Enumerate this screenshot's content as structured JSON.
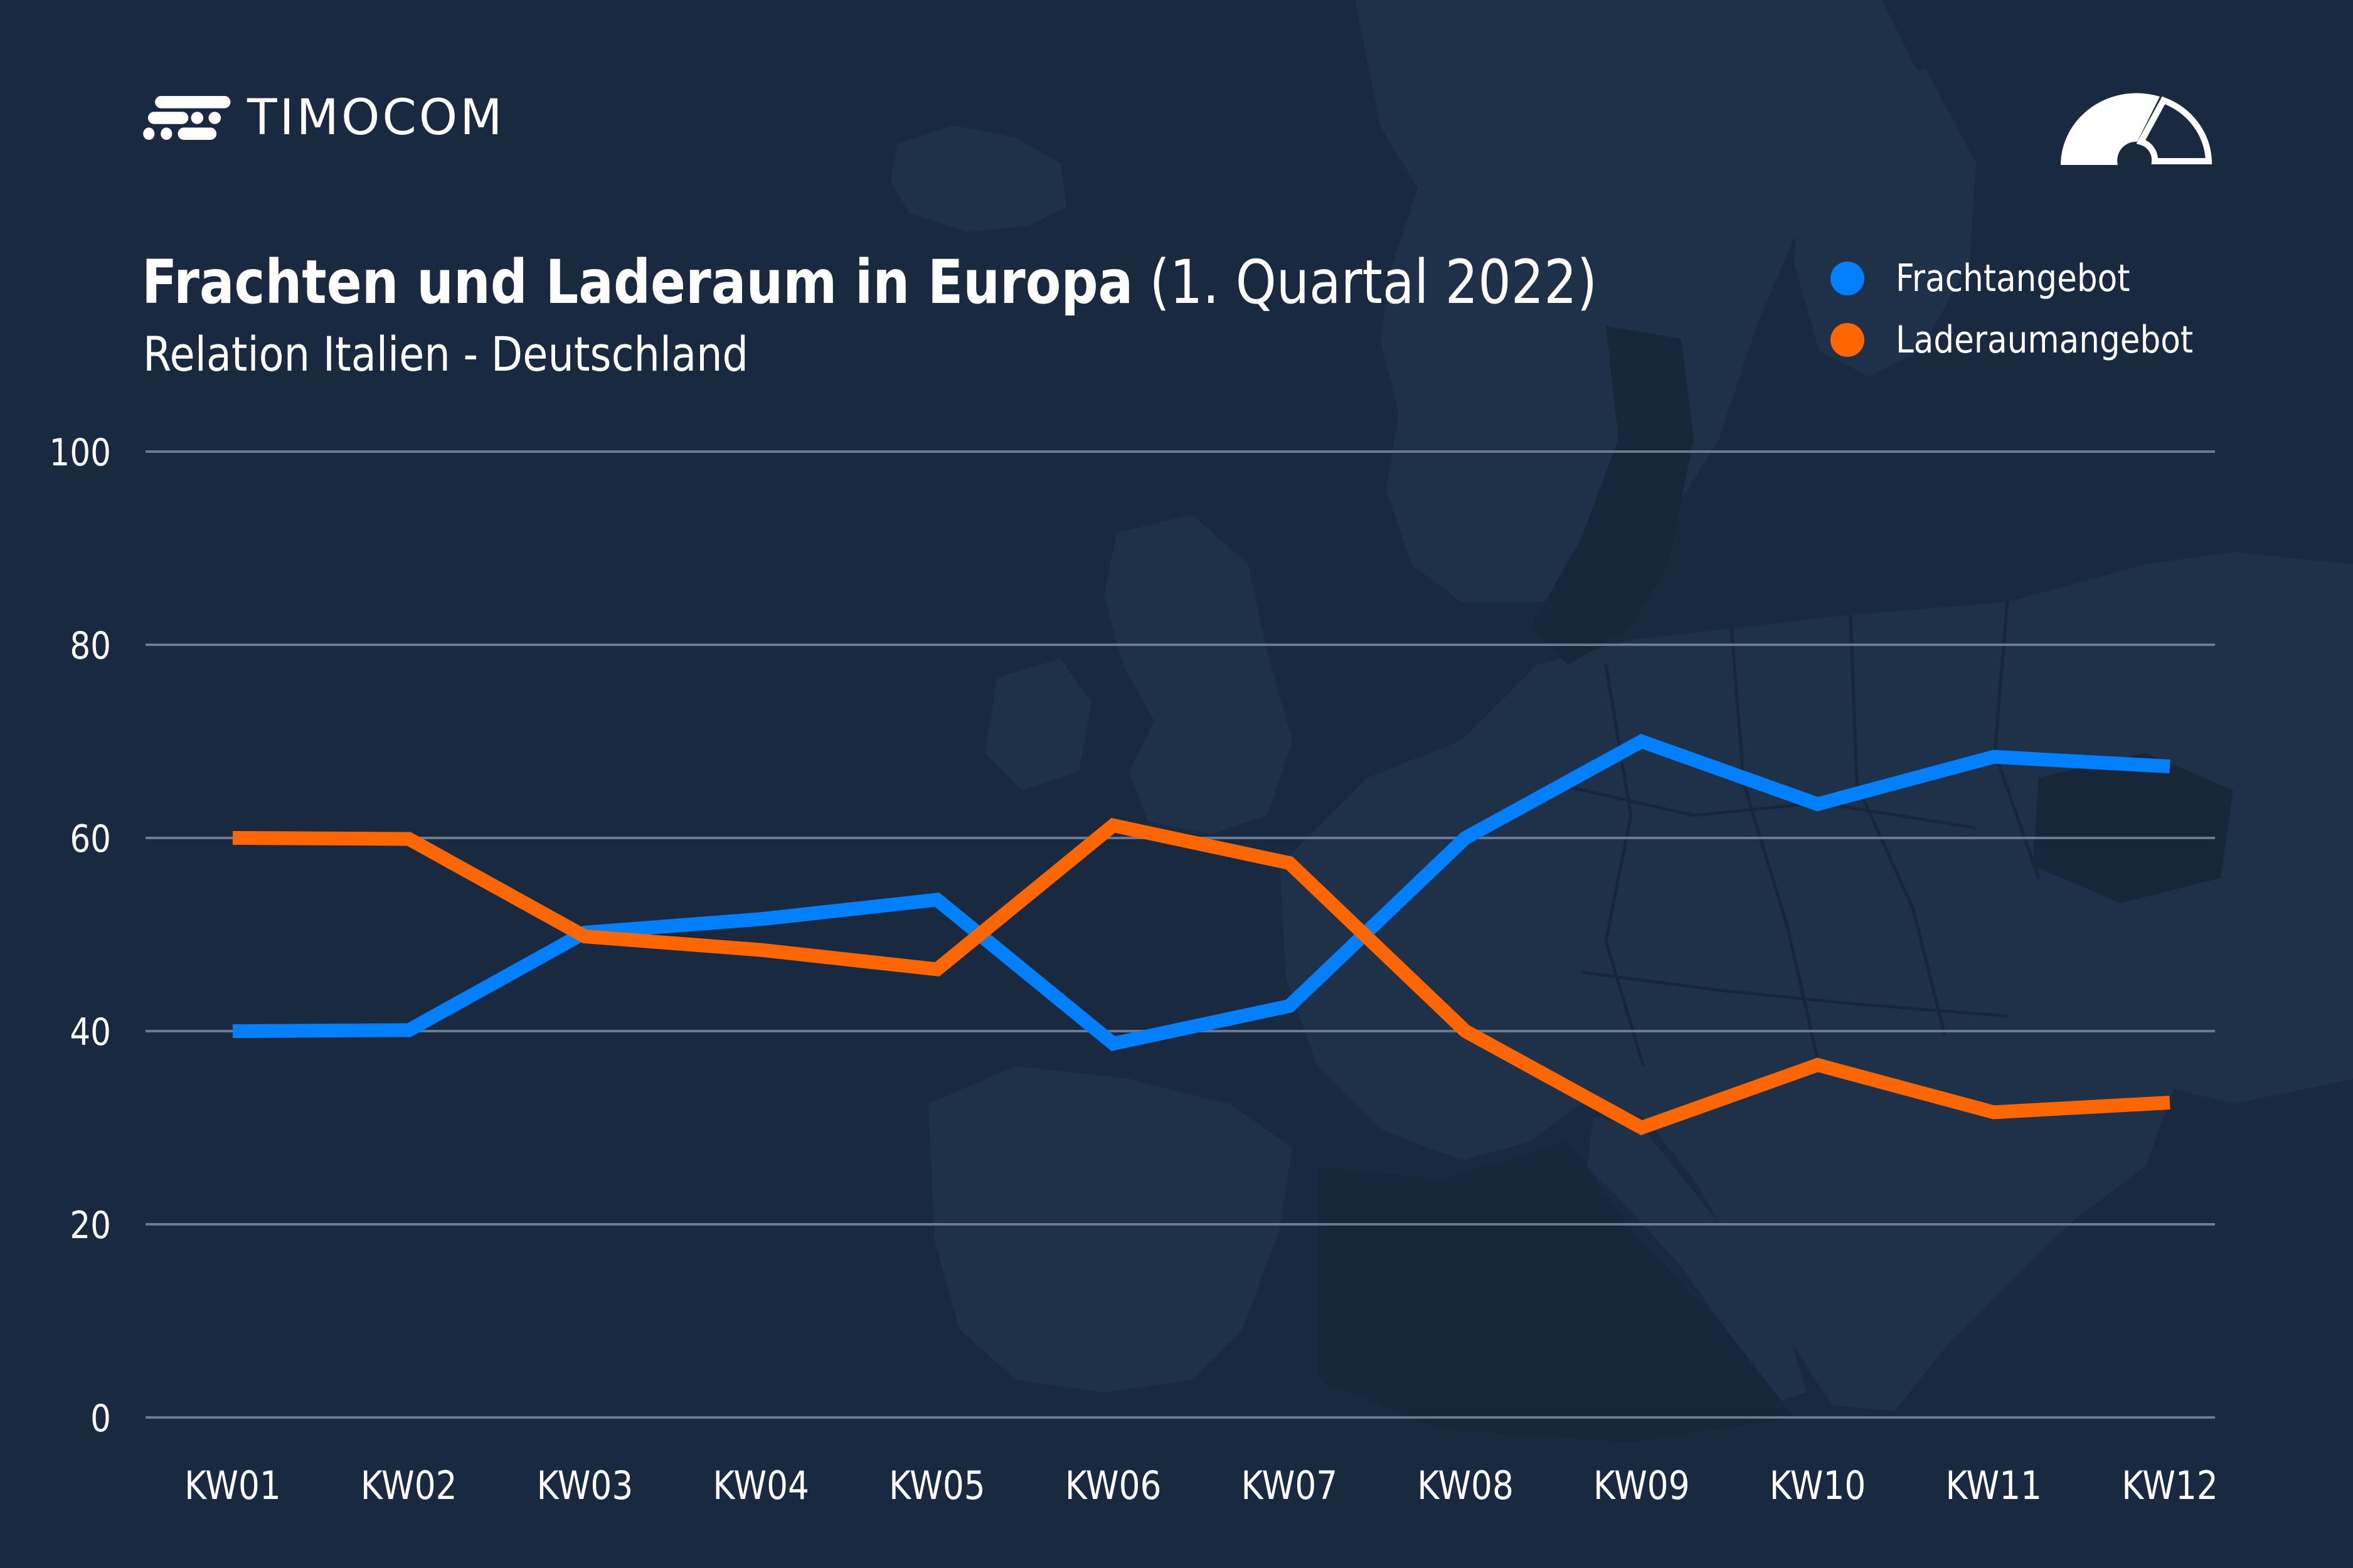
{
  "brand": {
    "logo_text": "TIMOCOM",
    "logo_icon": "timocom-dashes-icon",
    "top_right_icon": "gauge-icon"
  },
  "header": {
    "title_bold": "Frachten und Laderaum in Europa",
    "title_light": "(1. Quartal 2022)",
    "subtitle": "Relation Italien - Deutschland"
  },
  "colors": {
    "background": "#19293f",
    "map_land": "#1f3049",
    "map_dark": "#172739",
    "grid": "#6b7a93",
    "frachtangebot": "#0080ff",
    "laderaumangebot": "#ff6600"
  },
  "legend": [
    {
      "label": "Frachtangebot",
      "color": "#0080ff"
    },
    {
      "label": "Laderaumangebot",
      "color": "#ff6600"
    }
  ],
  "chart_data": {
    "type": "line",
    "title": "Frachten und Laderaum in Europa (1. Quartal 2022)",
    "subtitle": "Relation Italien - Deutschland",
    "xlabel": "",
    "ylabel": "",
    "categories": [
      "KW01",
      "KW02",
      "KW03",
      "KW04",
      "KW05",
      "KW06",
      "KW07",
      "KW08",
      "KW09",
      "KW10",
      "KW11",
      "KW12"
    ],
    "ylim": [
      0,
      100
    ],
    "yticks": [
      0,
      20,
      40,
      60,
      80,
      100
    ],
    "grid": true,
    "legend_position": "top-right",
    "series": [
      {
        "name": "Frachtangebot",
        "color": "#0080ff",
        "values": [
          40,
          40.1,
          50.2,
          51.6,
          53.6,
          38.7,
          42.6,
          60,
          70,
          63.5,
          68.4,
          67.4
        ]
      },
      {
        "name": "Laderaumangebot",
        "color": "#ff6600",
        "values": [
          60,
          59.9,
          49.8,
          48.4,
          46.4,
          61.3,
          57.4,
          40,
          30,
          36.5,
          31.6,
          32.6
        ]
      }
    ]
  }
}
